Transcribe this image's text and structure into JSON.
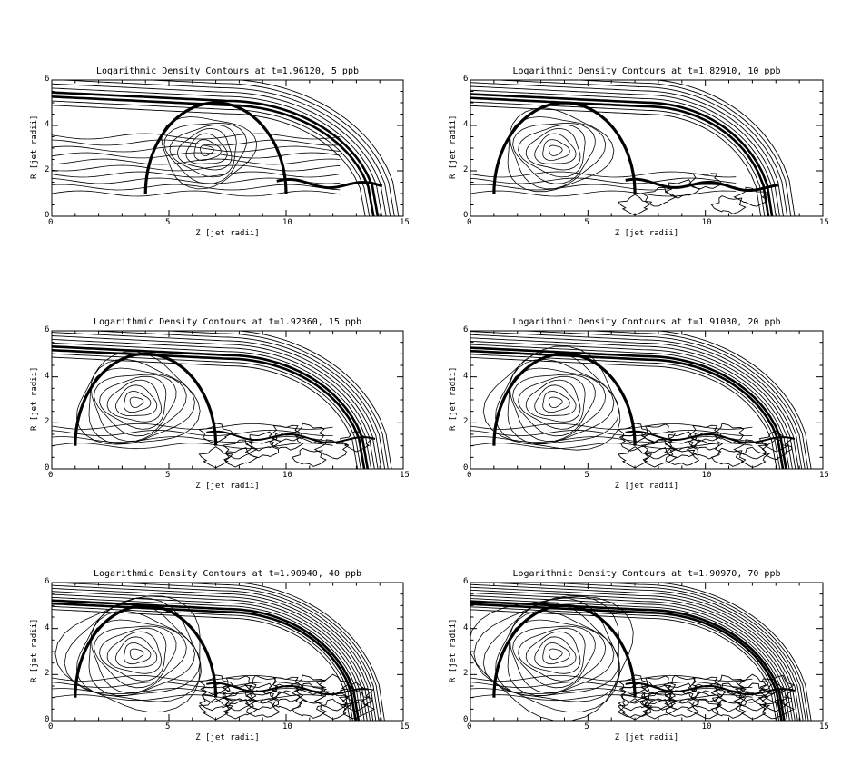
{
  "chart_data": [
    {
      "type": "contour",
      "title": "Logarithmic Density Contours at t=1.96120, 5 ppb",
      "xlabel": "Z [jet radii]",
      "ylabel": "R [jet radii]",
      "xlim": [
        0,
        15
      ],
      "ylim": [
        0,
        6
      ],
      "xticks": [
        0,
        5,
        10,
        15
      ],
      "yticks": [
        0,
        2,
        4,
        6
      ],
      "x_tick_labels": [
        "0",
        "5",
        "10",
        "15"
      ],
      "y_tick_labels": [
        "0",
        "2",
        "4",
        "6"
      ],
      "bow_shock_tip_z": 14.8,
      "grid": false
    },
    {
      "type": "contour",
      "title": "Logarithmic Density Contours at t=1.82910, 10 ppb",
      "xlabel": "Z [jet radii]",
      "ylabel": "R [jet radii]",
      "xlim": [
        0,
        15
      ],
      "ylim": [
        0,
        6
      ],
      "xticks": [
        0,
        5,
        10,
        15
      ],
      "yticks": [
        0,
        2,
        4,
        6
      ],
      "x_tick_labels": [
        "0",
        "5",
        "10",
        "15"
      ],
      "y_tick_labels": [
        "0",
        "2",
        "4",
        "6"
      ],
      "bow_shock_tip_z": 13.8,
      "grid": false
    },
    {
      "type": "contour",
      "title": "Logarithmic Density Contours at t=1.92360, 15 ppb",
      "xlabel": "Z [jet radii]",
      "ylabel": "R [jet radii]",
      "xlim": [
        0,
        15
      ],
      "ylim": [
        0,
        6
      ],
      "xticks": [
        0,
        5,
        10,
        15
      ],
      "yticks": [
        0,
        2,
        4,
        6
      ],
      "x_tick_labels": [
        "0",
        "5",
        "10",
        "15"
      ],
      "y_tick_labels": [
        "0",
        "2",
        "4",
        "6"
      ],
      "bow_shock_tip_z": 14.5,
      "grid": false
    },
    {
      "type": "contour",
      "title": "Logarithmic Density Contours at t=1.91030, 20 ppb",
      "xlabel": "Z [jet radii]",
      "ylabel": "R [jet radii]",
      "xlim": [
        0,
        15
      ],
      "ylim": [
        0,
        6
      ],
      "xticks": [
        0,
        5,
        10,
        15
      ],
      "yticks": [
        0,
        2,
        4,
        6
      ],
      "x_tick_labels": [
        "0",
        "5",
        "10",
        "15"
      ],
      "y_tick_labels": [
        "0",
        "2",
        "4",
        "6"
      ],
      "bow_shock_tip_z": 14.5,
      "grid": false
    },
    {
      "type": "contour",
      "title": "Logarithmic Density Contours at t=1.90940, 40 ppb",
      "xlabel": "Z [jet radii]",
      "ylabel": "R [jet radii]",
      "xlim": [
        0,
        15
      ],
      "ylim": [
        0,
        6
      ],
      "xticks": [
        0,
        5,
        10,
        15
      ],
      "yticks": [
        0,
        2,
        4,
        6
      ],
      "x_tick_labels": [
        "0",
        "5",
        "10",
        "15"
      ],
      "y_tick_labels": [
        "0",
        "2",
        "4",
        "6"
      ],
      "bow_shock_tip_z": 14.2,
      "grid": false
    },
    {
      "type": "contour",
      "title": "Logarithmic Density Contours at t=1.90970, 70 ppb",
      "xlabel": "Z [jet radii]",
      "ylabel": "R [jet radii]",
      "xlim": [
        0,
        15
      ],
      "ylim": [
        0,
        6
      ],
      "xticks": [
        0,
        5,
        10,
        15
      ],
      "yticks": [
        0,
        2,
        4,
        6
      ],
      "x_tick_labels": [
        "0",
        "5",
        "10",
        "15"
      ],
      "y_tick_labels": [
        "0",
        "2",
        "4",
        "6"
      ],
      "bow_shock_tip_z": 14.5,
      "grid": false
    }
  ]
}
